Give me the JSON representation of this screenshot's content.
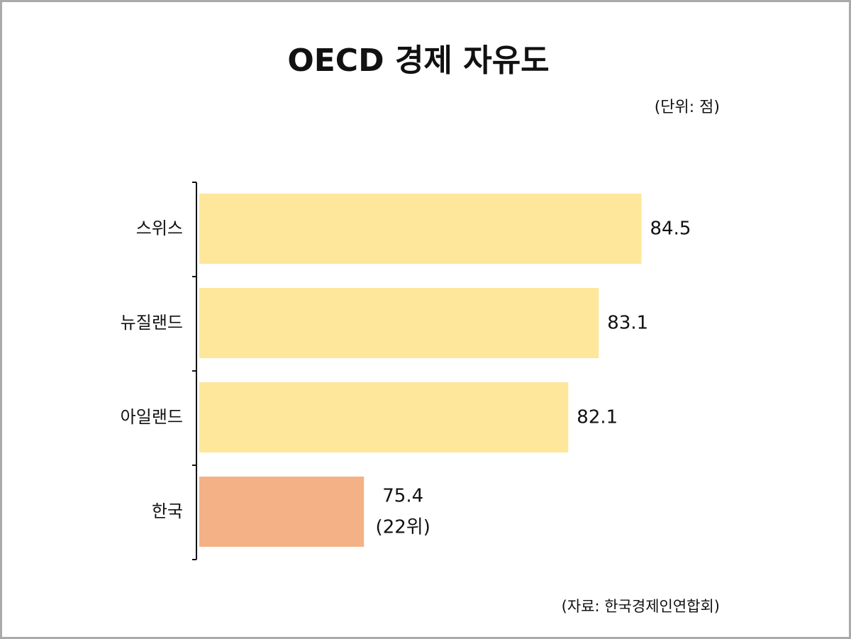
{
  "chart_data": {
    "type": "hbar",
    "title": "OECD 경제 자유도",
    "unit_note": "(단위: 점)",
    "source": "(자료: 한국경제인연합회)",
    "categories": [
      "스위스",
      "뉴질랜드",
      "아일랜드",
      "한국"
    ],
    "values": [
      84.5,
      83.1,
      82.1,
      75.4
    ],
    "colors": [
      "#fee79b",
      "#fee79b",
      "#fee79b",
      "#f4b185"
    ],
    "annotations": [
      {
        "category": "한국",
        "text": "(22위)"
      }
    ],
    "xlim": [
      70,
      86
    ]
  }
}
